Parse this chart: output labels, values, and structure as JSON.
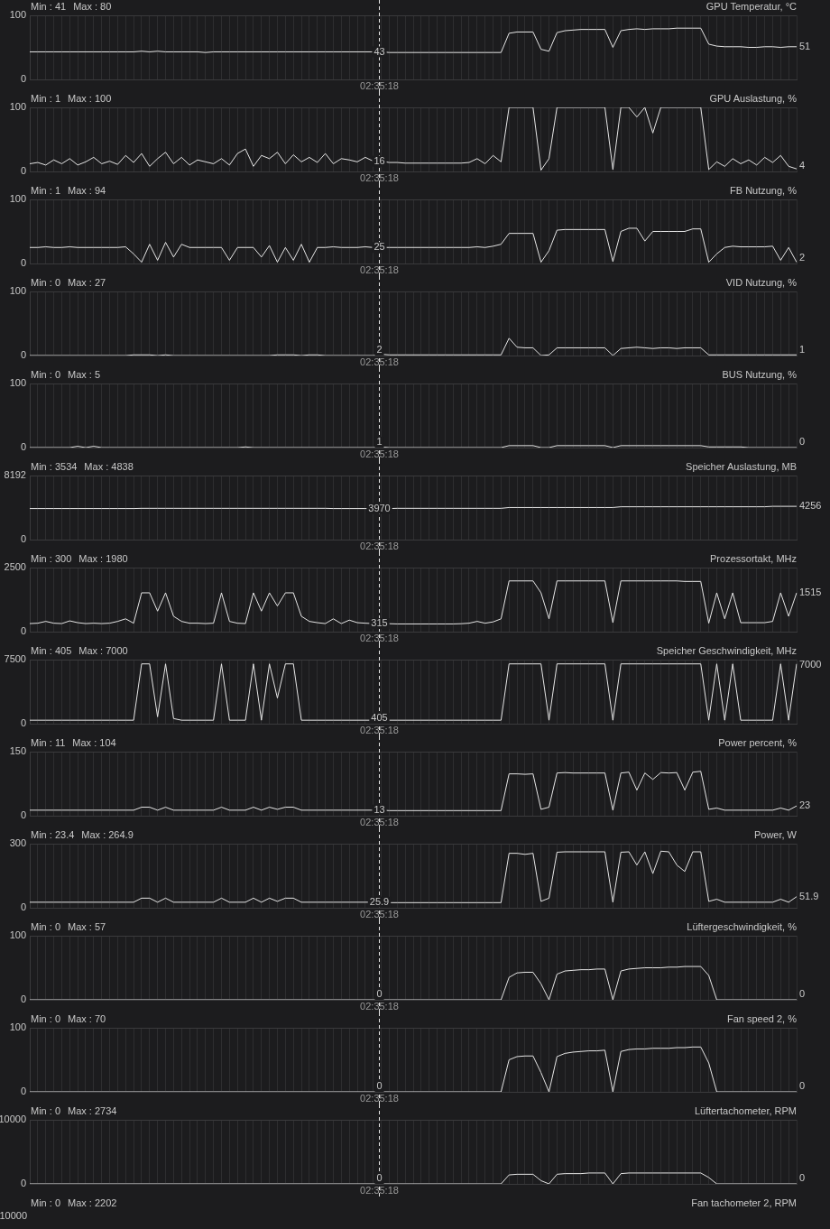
{
  "chart_data": [
    {
      "type": "line",
      "title": "GPU Temperatur, °C",
      "annotations": [
        "Min : 41",
        "Max : 80",
        "43",
        "51",
        "02:35:18"
      ],
      "categories": [
        null,
        null,
        null,
        null,
        null,
        null,
        null,
        null,
        null,
        null,
        null,
        null,
        null,
        null,
        null,
        null,
        null,
        null,
        null,
        null,
        null,
        null,
        null,
        null,
        null,
        null,
        null,
        null,
        null,
        null,
        null,
        null,
        null,
        null,
        null,
        null,
        null,
        null,
        null,
        null,
        null,
        null,
        null,
        null,
        null,
        null,
        null,
        null,
        null,
        null,
        null,
        null,
        null,
        null,
        null,
        null,
        null,
        null,
        null,
        null,
        null,
        null,
        null,
        null,
        null,
        null,
        null,
        null,
        null,
        null,
        null,
        null,
        null,
        null,
        null,
        null,
        null,
        null,
        null,
        null,
        null,
        null,
        null,
        null,
        null,
        null,
        null,
        null,
        null,
        null,
        null,
        null,
        null,
        null,
        null,
        null,
        null
      ],
      "color": "#e6e6e6",
      "ylim": [
        0,
        100
      ],
      "yticks": [
        0,
        100
      ],
      "grid": true,
      "tick_labels": "y",
      "values": [
        43,
        43,
        43,
        43,
        43,
        43,
        43,
        43,
        43,
        43,
        43,
        43,
        43,
        43,
        44,
        43,
        44,
        43,
        43,
        43,
        43,
        43,
        42,
        43,
        43,
        43,
        43,
        43,
        43,
        43,
        43,
        43,
        43,
        43,
        43,
        43,
        43,
        43,
        43,
        43,
        43,
        43,
        43,
        43,
        43,
        42,
        42,
        42,
        42,
        42,
        42,
        42,
        42,
        42,
        42,
        42,
        42,
        42,
        42,
        42,
        72,
        74,
        74,
        74,
        47,
        44,
        73,
        76,
        77,
        78,
        78,
        78,
        78,
        50,
        76,
        78,
        79,
        78,
        79,
        79,
        79,
        80,
        80,
        80,
        80,
        55,
        52,
        51,
        51,
        51,
        50,
        50,
        51,
        51,
        50,
        51,
        51
      ]
    },
    {
      "type": "line",
      "title": "GPU Auslastung, %",
      "annotations": [
        "Min : 1",
        "Max : 100",
        "16",
        "4",
        "02:35:18"
      ],
      "categories": [
        null,
        null,
        null,
        null,
        null,
        null,
        null,
        null,
        null,
        null,
        null,
        null,
        null,
        null,
        null,
        null,
        null,
        null,
        null,
        null,
        null,
        null,
        null,
        null,
        null,
        null,
        null,
        null,
        null,
        null,
        null,
        null,
        null,
        null,
        null,
        null,
        null,
        null,
        null,
        null,
        null,
        null,
        null,
        null,
        null,
        null,
        null,
        null,
        null,
        null,
        null,
        null,
        null,
        null,
        null,
        null,
        null,
        null,
        null,
        null,
        null,
        null,
        null,
        null,
        null,
        null,
        null,
        null,
        null,
        null,
        null,
        null,
        null,
        null,
        null,
        null,
        null,
        null,
        null,
        null,
        null,
        null,
        null,
        null,
        null,
        null,
        null,
        null,
        null,
        null,
        null,
        null,
        null,
        null,
        null,
        null,
        null
      ],
      "color": "#e6e6e6",
      "ylim": [
        0,
        100
      ],
      "yticks": [
        0,
        100
      ],
      "grid": true,
      "tick_labels": "y",
      "values": [
        12,
        14,
        10,
        18,
        12,
        20,
        10,
        15,
        22,
        12,
        16,
        11,
        25,
        14,
        28,
        8,
        20,
        30,
        12,
        22,
        10,
        18,
        15,
        12,
        20,
        10,
        28,
        35,
        8,
        25,
        20,
        30,
        12,
        26,
        15,
        22,
        14,
        28,
        12,
        20,
        18,
        15,
        22,
        16,
        16,
        14,
        14,
        13,
        13,
        13,
        13,
        13,
        13,
        13,
        13,
        14,
        20,
        12,
        25,
        15,
        100,
        100,
        100,
        100,
        2,
        20,
        100,
        100,
        100,
        100,
        100,
        100,
        100,
        3,
        100,
        100,
        85,
        100,
        60,
        100,
        100,
        100,
        100,
        100,
        100,
        3,
        15,
        8,
        20,
        12,
        18,
        10,
        22,
        14,
        25,
        8,
        4
      ]
    },
    {
      "type": "line",
      "title": "FB Nutzung, %",
      "annotations": [
        "Min : 1",
        "Max : 94",
        "25",
        "2",
        "02:35:18"
      ],
      "categories": [
        null,
        null,
        null,
        null,
        null,
        null,
        null,
        null,
        null,
        null,
        null,
        null,
        null,
        null,
        null,
        null,
        null,
        null,
        null,
        null,
        null,
        null,
        null,
        null,
        null,
        null,
        null,
        null,
        null,
        null,
        null,
        null,
        null,
        null,
        null,
        null,
        null,
        null,
        null,
        null,
        null,
        null,
        null,
        null,
        null,
        null,
        null,
        null,
        null,
        null,
        null,
        null,
        null,
        null,
        null,
        null,
        null,
        null,
        null,
        null,
        null,
        null,
        null,
        null,
        null,
        null,
        null,
        null,
        null,
        null,
        null,
        null,
        null,
        null,
        null,
        null,
        null,
        null,
        null,
        null,
        null,
        null,
        null,
        null,
        null,
        null,
        null,
        null,
        null,
        null,
        null,
        null,
        null,
        null,
        null,
        null,
        null
      ],
      "color": "#e6e6e6",
      "ylim": [
        0,
        100
      ],
      "yticks": [
        0,
        100
      ],
      "grid": true,
      "tick_labels": "y",
      "values": [
        25,
        25,
        26,
        25,
        25,
        26,
        25,
        25,
        25,
        25,
        25,
        25,
        26,
        15,
        2,
        30,
        5,
        33,
        10,
        30,
        25,
        25,
        25,
        25,
        25,
        5,
        25,
        25,
        25,
        10,
        28,
        2,
        25,
        5,
        30,
        2,
        25,
        25,
        26,
        25,
        25,
        25,
        26,
        25,
        25,
        25,
        25,
        25,
        25,
        25,
        25,
        25,
        25,
        25,
        25,
        25,
        26,
        25,
        27,
        30,
        47,
        47,
        47,
        47,
        2,
        20,
        52,
        53,
        53,
        53,
        53,
        53,
        53,
        3,
        50,
        55,
        55,
        35,
        50,
        50,
        50,
        50,
        50,
        54,
        54,
        2,
        15,
        25,
        27,
        26,
        26,
        26,
        26,
        27,
        5,
        25,
        2
      ]
    },
    {
      "type": "line",
      "title": "VID Nutzung, %",
      "annotations": [
        "Min : 0",
        "Max : 27",
        "2",
        "1",
        "02:35:18"
      ],
      "categories": [
        null,
        null,
        null,
        null,
        null,
        null,
        null,
        null,
        null,
        null,
        null,
        null,
        null,
        null,
        null,
        null,
        null,
        null,
        null,
        null,
        null,
        null,
        null,
        null,
        null,
        null,
        null,
        null,
        null,
        null,
        null,
        null,
        null,
        null,
        null,
        null,
        null,
        null,
        null,
        null,
        null,
        null,
        null,
        null,
        null,
        null,
        null,
        null,
        null,
        null,
        null,
        null,
        null,
        null,
        null,
        null,
        null,
        null,
        null,
        null,
        null,
        null,
        null,
        null,
        null,
        null,
        null,
        null,
        null,
        null,
        null,
        null,
        null,
        null,
        null,
        null,
        null,
        null,
        null,
        null,
        null,
        null,
        null,
        null,
        null,
        null,
        null,
        null,
        null,
        null,
        null,
        null,
        null,
        null,
        null,
        null,
        null
      ],
      "color": "#e6e6e6",
      "ylim": [
        0,
        100
      ],
      "yticks": [
        0,
        100
      ],
      "grid": true,
      "tick_labels": "y",
      "values": [
        0,
        0,
        0,
        0,
        0,
        0,
        0,
        0,
        0,
        0,
        0,
        0,
        0,
        1,
        1,
        1,
        0,
        1,
        0,
        0,
        0,
        0,
        0,
        0,
        0,
        0,
        0,
        0,
        0,
        0,
        0,
        1,
        1,
        1,
        0,
        1,
        1,
        0,
        0,
        0,
        0,
        0,
        0,
        0,
        2,
        1,
        1,
        1,
        1,
        1,
        1,
        1,
        1,
        1,
        1,
        1,
        1,
        1,
        1,
        1,
        27,
        13,
        12,
        12,
        0,
        1,
        12,
        12,
        12,
        12,
        12,
        12,
        12,
        0,
        11,
        12,
        13,
        12,
        11,
        12,
        12,
        11,
        12,
        12,
        12,
        1,
        1,
        1,
        1,
        1,
        1,
        1,
        1,
        1,
        1,
        1,
        1
      ]
    },
    {
      "type": "line",
      "title": "BUS Nutzung, %",
      "annotations": [
        "Min : 0",
        "Max : 5",
        "1",
        "0",
        "02:35:18"
      ],
      "categories": [
        null,
        null,
        null,
        null,
        null,
        null,
        null,
        null,
        null,
        null,
        null,
        null,
        null,
        null,
        null,
        null,
        null,
        null,
        null,
        null,
        null,
        null,
        null,
        null,
        null,
        null,
        null,
        null,
        null,
        null,
        null,
        null,
        null,
        null,
        null,
        null,
        null,
        null,
        null,
        null,
        null,
        null,
        null,
        null,
        null,
        null,
        null,
        null,
        null,
        null,
        null,
        null,
        null,
        null,
        null,
        null,
        null,
        null,
        null,
        null,
        null,
        null,
        null,
        null,
        null,
        null,
        null,
        null,
        null,
        null,
        null,
        null,
        null,
        null,
        null,
        null,
        null,
        null,
        null,
        null,
        null,
        null,
        null,
        null,
        null,
        null,
        null,
        null,
        null,
        null,
        null,
        null,
        null,
        null,
        null,
        null,
        null
      ],
      "color": "#e6e6e6",
      "ylim": [
        0,
        100
      ],
      "yticks": [
        0,
        100
      ],
      "grid": true,
      "tick_labels": "y",
      "values": [
        0,
        0,
        0,
        0,
        0,
        0,
        2,
        0,
        2,
        0,
        0,
        0,
        0,
        0,
        0,
        0,
        0,
        0,
        0,
        0,
        0,
        0,
        0,
        0,
        0,
        0,
        0,
        1,
        0,
        0,
        0,
        0,
        0,
        0,
        0,
        0,
        0,
        0,
        0,
        0,
        0,
        0,
        0,
        0,
        1,
        0,
        0,
        0,
        0,
        0,
        0,
        0,
        0,
        0,
        0,
        0,
        0,
        0,
        0,
        0,
        3,
        3,
        3,
        3,
        0,
        0,
        3,
        3,
        3,
        3,
        3,
        3,
        3,
        0,
        3,
        3,
        3,
        3,
        3,
        3,
        3,
        3,
        3,
        3,
        3,
        1,
        1,
        1,
        1,
        1,
        0,
        0,
        0,
        0,
        0,
        0,
        0
      ]
    },
    {
      "type": "line",
      "title": "Speicher Auslastung, MB",
      "annotations": [
        "Min : 3534",
        "Max : 4838",
        "3970",
        "4256",
        "02:35:18"
      ],
      "categories": [
        null,
        null,
        null,
        null,
        null,
        null,
        null,
        null,
        null,
        null,
        null,
        null,
        null,
        null,
        null,
        null,
        null,
        null,
        null,
        null,
        null,
        null,
        null,
        null,
        null,
        null,
        null,
        null,
        null,
        null,
        null,
        null,
        null,
        null,
        null,
        null,
        null,
        null,
        null,
        null,
        null,
        null,
        null,
        null,
        null,
        null,
        null,
        null,
        null,
        null,
        null,
        null,
        null,
        null,
        null,
        null,
        null,
        null,
        null,
        null,
        null,
        null,
        null,
        null,
        null,
        null,
        null,
        null,
        null,
        null,
        null,
        null,
        null,
        null,
        null,
        null,
        null,
        null,
        null,
        null,
        null,
        null,
        null,
        null,
        null,
        null,
        null,
        null,
        null,
        null,
        null,
        null,
        null,
        null,
        null,
        null,
        null
      ],
      "color": "#e6e6e6",
      "ylim": [
        0,
        8192
      ],
      "yticks": [
        0,
        8192
      ],
      "grid": true,
      "tick_labels": "y",
      "values": [
        3970,
        3970,
        3970,
        3970,
        3970,
        3970,
        3970,
        3970,
        3970,
        3970,
        3970,
        3970,
        3970,
        3970,
        4000,
        4000,
        4000,
        4000,
        4000,
        4000,
        4000,
        4000,
        4000,
        4000,
        4000,
        4000,
        4000,
        4000,
        4000,
        4000,
        4000,
        4000,
        4000,
        4000,
        4000,
        4000,
        4000,
        4000,
        3970,
        3970,
        3970,
        3970,
        3970,
        3970,
        3970,
        3970,
        4000,
        4000,
        4000,
        4000,
        4000,
        4000,
        4000,
        4000,
        4000,
        4000,
        4000,
        4000,
        4000,
        4000,
        4100,
        4100,
        4100,
        4100,
        4100,
        4100,
        4100,
        4100,
        4100,
        4100,
        4100,
        4100,
        4100,
        4100,
        4200,
        4200,
        4200,
        4200,
        4200,
        4200,
        4200,
        4200,
        4200,
        4200,
        4200,
        4200,
        4200,
        4200,
        4200,
        4200,
        4200,
        4200,
        4200,
        4256,
        4256,
        4256,
        4256
      ]
    },
    {
      "type": "line",
      "title": "Prozessortakt, MHz",
      "annotations": [
        "Min : 300",
        "Max : 1980",
        "315",
        "1515",
        "02:35:18"
      ],
      "categories": [
        null,
        null,
        null,
        null,
        null,
        null,
        null,
        null,
        null,
        null,
        null,
        null,
        null,
        null,
        null,
        null,
        null,
        null,
        null,
        null,
        null,
        null,
        null,
        null,
        null,
        null,
        null,
        null,
        null,
        null,
        null,
        null,
        null,
        null,
        null,
        null,
        null,
        null,
        null,
        null,
        null,
        null,
        null,
        null,
        null,
        null,
        null,
        null,
        null,
        null,
        null,
        null,
        null,
        null,
        null,
        null,
        null,
        null,
        null,
        null,
        null,
        null,
        null,
        null,
        null,
        null,
        null,
        null,
        null,
        null,
        null,
        null,
        null,
        null,
        null,
        null,
        null,
        null,
        null,
        null,
        null,
        null,
        null,
        null,
        null,
        null,
        null,
        null,
        null,
        null,
        null,
        null,
        null,
        null,
        null,
        null,
        null
      ],
      "color": "#e6e6e6",
      "ylim": [
        0,
        2500
      ],
      "yticks": [
        0,
        2500
      ],
      "grid": true,
      "tick_labels": "y",
      "values": [
        315,
        330,
        400,
        330,
        315,
        420,
        350,
        315,
        330,
        315,
        330,
        400,
        500,
        330,
        1515,
        1515,
        800,
        1515,
        600,
        400,
        330,
        330,
        315,
        330,
        1515,
        400,
        330,
        315,
        1515,
        800,
        1515,
        1000,
        1515,
        1515,
        600,
        400,
        350,
        315,
        500,
        315,
        450,
        350,
        330,
        315,
        315,
        310,
        300,
        300,
        300,
        300,
        300,
        300,
        300,
        300,
        310,
        330,
        400,
        330,
        380,
        500,
        1980,
        1980,
        1980,
        1980,
        1515,
        500,
        1980,
        1980,
        1980,
        1980,
        1980,
        1980,
        1980,
        350,
        1980,
        1980,
        1980,
        1980,
        1980,
        1980,
        1980,
        1980,
        1960,
        1960,
        1960,
        330,
        1515,
        500,
        1515,
        350,
        350,
        350,
        350,
        400,
        1515,
        600,
        1515
      ]
    },
    {
      "type": "line",
      "title": "Speicher Geschwindigkeit, MHz",
      "annotations": [
        "Min : 405",
        "Max : 7000",
        "405",
        "7000",
        "02:35:18"
      ],
      "categories": [
        null,
        null,
        null,
        null,
        null,
        null,
        null,
        null,
        null,
        null,
        null,
        null,
        null,
        null,
        null,
        null,
        null,
        null,
        null,
        null,
        null,
        null,
        null,
        null,
        null,
        null,
        null,
        null,
        null,
        null,
        null,
        null,
        null,
        null,
        null,
        null,
        null,
        null,
        null,
        null,
        null,
        null,
        null,
        null,
        null,
        null,
        null,
        null,
        null,
        null,
        null,
        null,
        null,
        null,
        null,
        null,
        null,
        null,
        null,
        null,
        null,
        null,
        null,
        null,
        null,
        null,
        null,
        null,
        null,
        null,
        null,
        null,
        null,
        null,
        null,
        null,
        null,
        null,
        null,
        null,
        null,
        null,
        null,
        null,
        null,
        null,
        null,
        null,
        null,
        null,
        null,
        null,
        null,
        null,
        null,
        null,
        null
      ],
      "color": "#e6e6e6",
      "ylim": [
        0,
        7500
      ],
      "yticks": [
        0,
        7500
      ],
      "grid": true,
      "tick_labels": "y",
      "values": [
        405,
        405,
        405,
        405,
        405,
        405,
        405,
        405,
        405,
        405,
        405,
        405,
        405,
        405,
        7000,
        7000,
        800,
        7000,
        600,
        405,
        405,
        405,
        405,
        405,
        7000,
        405,
        405,
        405,
        7000,
        405,
        7000,
        3000,
        7000,
        7000,
        405,
        405,
        405,
        405,
        405,
        405,
        405,
        405,
        405,
        405,
        405,
        405,
        405,
        405,
        405,
        405,
        405,
        405,
        405,
        405,
        405,
        405,
        405,
        405,
        405,
        405,
        7000,
        7000,
        7000,
        7000,
        7000,
        405,
        7000,
        7000,
        7000,
        7000,
        7000,
        7000,
        7000,
        405,
        7000,
        7000,
        7000,
        7000,
        7000,
        7000,
        7000,
        7000,
        7000,
        7000,
        7000,
        405,
        7000,
        405,
        7000,
        405,
        405,
        405,
        405,
        405,
        7000,
        405,
        7000
      ]
    },
    {
      "type": "line",
      "title": "Power percent, %",
      "annotations": [
        "Min : 11",
        "Max : 104",
        "13",
        "23",
        "02:35:18"
      ],
      "categories": [
        null,
        null,
        null,
        null,
        null,
        null,
        null,
        null,
        null,
        null,
        null,
        null,
        null,
        null,
        null,
        null,
        null,
        null,
        null,
        null,
        null,
        null,
        null,
        null,
        null,
        null,
        null,
        null,
        null,
        null,
        null,
        null,
        null,
        null,
        null,
        null,
        null,
        null,
        null,
        null,
        null,
        null,
        null,
        null,
        null,
        null,
        null,
        null,
        null,
        null,
        null,
        null,
        null,
        null,
        null,
        null,
        null,
        null,
        null,
        null,
        null,
        null,
        null,
        null,
        null,
        null,
        null,
        null,
        null,
        null,
        null,
        null,
        null,
        null,
        null,
        null,
        null,
        null,
        null,
        null,
        null,
        null,
        null,
        null,
        null,
        null,
        null,
        null,
        null,
        null,
        null,
        null,
        null,
        null,
        null,
        null,
        null
      ],
      "color": "#e6e6e6",
      "ylim": [
        0,
        150
      ],
      "yticks": [
        0,
        150
      ],
      "grid": true,
      "tick_labels": "y",
      "values": [
        13,
        13,
        13,
        13,
        13,
        13,
        13,
        13,
        13,
        13,
        13,
        13,
        13,
        13,
        20,
        20,
        13,
        20,
        13,
        13,
        13,
        13,
        13,
        13,
        20,
        13,
        13,
        13,
        20,
        13,
        20,
        15,
        20,
        20,
        13,
        13,
        13,
        13,
        13,
        13,
        13,
        13,
        13,
        13,
        13,
        12,
        12,
        12,
        12,
        12,
        12,
        12,
        12,
        12,
        12,
        12,
        12,
        12,
        12,
        12,
        98,
        98,
        97,
        98,
        15,
        20,
        100,
        101,
        100,
        100,
        100,
        100,
        100,
        13,
        100,
        102,
        60,
        100,
        85,
        101,
        100,
        101,
        60,
        102,
        104,
        15,
        18,
        13,
        13,
        13,
        13,
        13,
        13,
        13,
        18,
        13,
        23
      ]
    },
    {
      "type": "line",
      "title": "Power, W",
      "annotations": [
        "Min : 23.4",
        "Max : 264.9",
        "25.9",
        "51.9",
        "02:35:18"
      ],
      "categories": [
        null,
        null,
        null,
        null,
        null,
        null,
        null,
        null,
        null,
        null,
        null,
        null,
        null,
        null,
        null,
        null,
        null,
        null,
        null,
        null,
        null,
        null,
        null,
        null,
        null,
        null,
        null,
        null,
        null,
        null,
        null,
        null,
        null,
        null,
        null,
        null,
        null,
        null,
        null,
        null,
        null,
        null,
        null,
        null,
        null,
        null,
        null,
        null,
        null,
        null,
        null,
        null,
        null,
        null,
        null,
        null,
        null,
        null,
        null,
        null,
        null,
        null,
        null,
        null,
        null,
        null,
        null,
        null,
        null,
        null,
        null,
        null,
        null,
        null,
        null,
        null,
        null,
        null,
        null,
        null,
        null,
        null,
        null,
        null,
        null,
        null,
        null,
        null,
        null,
        null,
        null,
        null,
        null,
        null,
        null,
        null,
        null
      ],
      "color": "#e6e6e6",
      "ylim": [
        0,
        300
      ],
      "yticks": [
        0,
        300
      ],
      "grid": true,
      "tick_labels": "y",
      "values": [
        26,
        26,
        26,
        26,
        26,
        26,
        26,
        26,
        26,
        26,
        26,
        26,
        26,
        26,
        45,
        45,
        26,
        45,
        26,
        26,
        26,
        26,
        26,
        26,
        45,
        26,
        26,
        26,
        45,
        26,
        45,
        30,
        45,
        45,
        26,
        26,
        26,
        26,
        26,
        26,
        26,
        26,
        26,
        26,
        26,
        24,
        24,
        24,
        24,
        24,
        24,
        24,
        24,
        24,
        24,
        24,
        24,
        24,
        24,
        24,
        255,
        255,
        250,
        255,
        30,
        45,
        260,
        262,
        262,
        262,
        262,
        262,
        262,
        26,
        260,
        262,
        200,
        262,
        160,
        265,
        262,
        200,
        170,
        262,
        262,
        30,
        40,
        26,
        26,
        26,
        26,
        26,
        26,
        26,
        40,
        26,
        52
      ]
    },
    {
      "type": "line",
      "title": "Lüftergeschwindigkeit, %",
      "annotations": [
        "Min : 0",
        "Max : 57",
        "0",
        "0",
        "02:35:18"
      ],
      "categories": [
        null,
        null,
        null,
        null,
        null,
        null,
        null,
        null,
        null,
        null,
        null,
        null,
        null,
        null,
        null,
        null,
        null,
        null,
        null,
        null,
        null,
        null,
        null,
        null,
        null,
        null,
        null,
        null,
        null,
        null,
        null,
        null,
        null,
        null,
        null,
        null,
        null,
        null,
        null,
        null,
        null,
        null,
        null,
        null,
        null,
        null,
        null,
        null,
        null,
        null,
        null,
        null,
        null,
        null,
        null,
        null,
        null,
        null,
        null,
        null,
        null,
        null,
        null,
        null,
        null,
        null,
        null,
        null,
        null,
        null,
        null,
        null,
        null,
        null,
        null,
        null,
        null,
        null,
        null,
        null,
        null,
        null,
        null,
        null,
        null,
        null,
        null,
        null,
        null,
        null,
        null,
        null,
        null,
        null,
        null,
        null,
        null
      ],
      "color": "#e6e6e6",
      "ylim": [
        0,
        100
      ],
      "yticks": [
        0,
        100
      ],
      "grid": true,
      "tick_labels": "y",
      "values": [
        0,
        0,
        0,
        0,
        0,
        0,
        0,
        0,
        0,
        0,
        0,
        0,
        0,
        0,
        0,
        0,
        0,
        0,
        0,
        0,
        0,
        0,
        0,
        0,
        0,
        0,
        0,
        0,
        0,
        0,
        0,
        0,
        0,
        0,
        0,
        0,
        0,
        0,
        0,
        0,
        0,
        0,
        0,
        0,
        0,
        0,
        0,
        0,
        0,
        0,
        0,
        0,
        0,
        0,
        0,
        0,
        0,
        0,
        0,
        0,
        35,
        42,
        43,
        43,
        25,
        0,
        40,
        45,
        46,
        47,
        47,
        48,
        48,
        0,
        45,
        48,
        49,
        50,
        50,
        50,
        51,
        51,
        52,
        52,
        52,
        38,
        0,
        0,
        0,
        0,
        0,
        0,
        0,
        0,
        0,
        0,
        0
      ]
    },
    {
      "type": "line",
      "title": "Fan speed 2, %",
      "annotations": [
        "Min : 0",
        "Max : 70",
        "0",
        "0",
        "02:35:18"
      ],
      "categories": [
        null,
        null,
        null,
        null,
        null,
        null,
        null,
        null,
        null,
        null,
        null,
        null,
        null,
        null,
        null,
        null,
        null,
        null,
        null,
        null,
        null,
        null,
        null,
        null,
        null,
        null,
        null,
        null,
        null,
        null,
        null,
        null,
        null,
        null,
        null,
        null,
        null,
        null,
        null,
        null,
        null,
        null,
        null,
        null,
        null,
        null,
        null,
        null,
        null,
        null,
        null,
        null,
        null,
        null,
        null,
        null,
        null,
        null,
        null,
        null,
        null,
        null,
        null,
        null,
        null,
        null,
        null,
        null,
        null,
        null,
        null,
        null,
        null,
        null,
        null,
        null,
        null,
        null,
        null,
        null,
        null,
        null,
        null,
        null,
        null,
        null,
        null,
        null,
        null,
        null,
        null,
        null,
        null,
        null,
        null,
        null,
        null
      ],
      "color": "#e6e6e6",
      "ylim": [
        0,
        100
      ],
      "yticks": [
        0,
        100
      ],
      "grid": true,
      "tick_labels": "y",
      "values": [
        0,
        0,
        0,
        0,
        0,
        0,
        0,
        0,
        0,
        0,
        0,
        0,
        0,
        0,
        0,
        0,
        0,
        0,
        0,
        0,
        0,
        0,
        0,
        0,
        0,
        0,
        0,
        0,
        0,
        0,
        0,
        0,
        0,
        0,
        0,
        0,
        0,
        0,
        0,
        0,
        0,
        0,
        0,
        0,
        0,
        0,
        0,
        0,
        0,
        0,
        0,
        0,
        0,
        0,
        0,
        0,
        0,
        0,
        0,
        0,
        50,
        55,
        56,
        56,
        30,
        0,
        55,
        60,
        62,
        63,
        64,
        64,
        65,
        0,
        63,
        66,
        67,
        67,
        68,
        68,
        68,
        69,
        69,
        70,
        70,
        45,
        0,
        0,
        0,
        0,
        0,
        0,
        0,
        0,
        0,
        0,
        0
      ]
    },
    {
      "type": "line",
      "title": "Lüftertachometer, RPM",
      "annotations": [
        "Min : 0",
        "Max : 2734",
        "0",
        "0",
        "02:35:18"
      ],
      "categories": [
        null,
        null,
        null,
        null,
        null,
        null,
        null,
        null,
        null,
        null,
        null,
        null,
        null,
        null,
        null,
        null,
        null,
        null,
        null,
        null,
        null,
        null,
        null,
        null,
        null,
        null,
        null,
        null,
        null,
        null,
        null,
        null,
        null,
        null,
        null,
        null,
        null,
        null,
        null,
        null,
        null,
        null,
        null,
        null,
        null,
        null,
        null,
        null,
        null,
        null,
        null,
        null,
        null,
        null,
        null,
        null,
        null,
        null,
        null,
        null,
        null,
        null,
        null,
        null,
        null,
        null,
        null,
        null,
        null,
        null,
        null,
        null,
        null,
        null,
        null,
        null,
        null,
        null,
        null,
        null,
        null,
        null,
        null,
        null,
        null,
        null,
        null,
        null,
        null,
        null,
        null,
        null,
        null,
        null,
        null,
        null,
        null
      ],
      "color": "#e6e6e6",
      "ylim": [
        0,
        10000
      ],
      "yticks": [
        0,
        10000
      ],
      "grid": true,
      "tick_labels": "y",
      "values": [
        0,
        0,
        0,
        0,
        0,
        0,
        0,
        0,
        0,
        0,
        0,
        0,
        0,
        0,
        0,
        0,
        0,
        0,
        0,
        0,
        0,
        0,
        0,
        0,
        0,
        0,
        0,
        0,
        0,
        0,
        0,
        0,
        0,
        0,
        0,
        0,
        0,
        0,
        0,
        0,
        0,
        0,
        0,
        0,
        0,
        0,
        0,
        0,
        0,
        0,
        0,
        0,
        0,
        0,
        0,
        0,
        0,
        0,
        0,
        0,
        1400,
        1500,
        1500,
        1500,
        500,
        0,
        1500,
        1600,
        1600,
        1600,
        1700,
        1700,
        1700,
        0,
        1600,
        1700,
        1700,
        1700,
        1700,
        1700,
        1700,
        1700,
        1700,
        1700,
        1700,
        1000,
        0,
        0,
        0,
        0,
        0,
        0,
        0,
        0,
        0,
        0,
        0
      ]
    },
    {
      "type": "other",
      "title": "Fan tachometer 2, RPM",
      "annotations": [
        "Min : 0",
        "Max : 2202",
        "10000"
      ]
    }
  ]
}
